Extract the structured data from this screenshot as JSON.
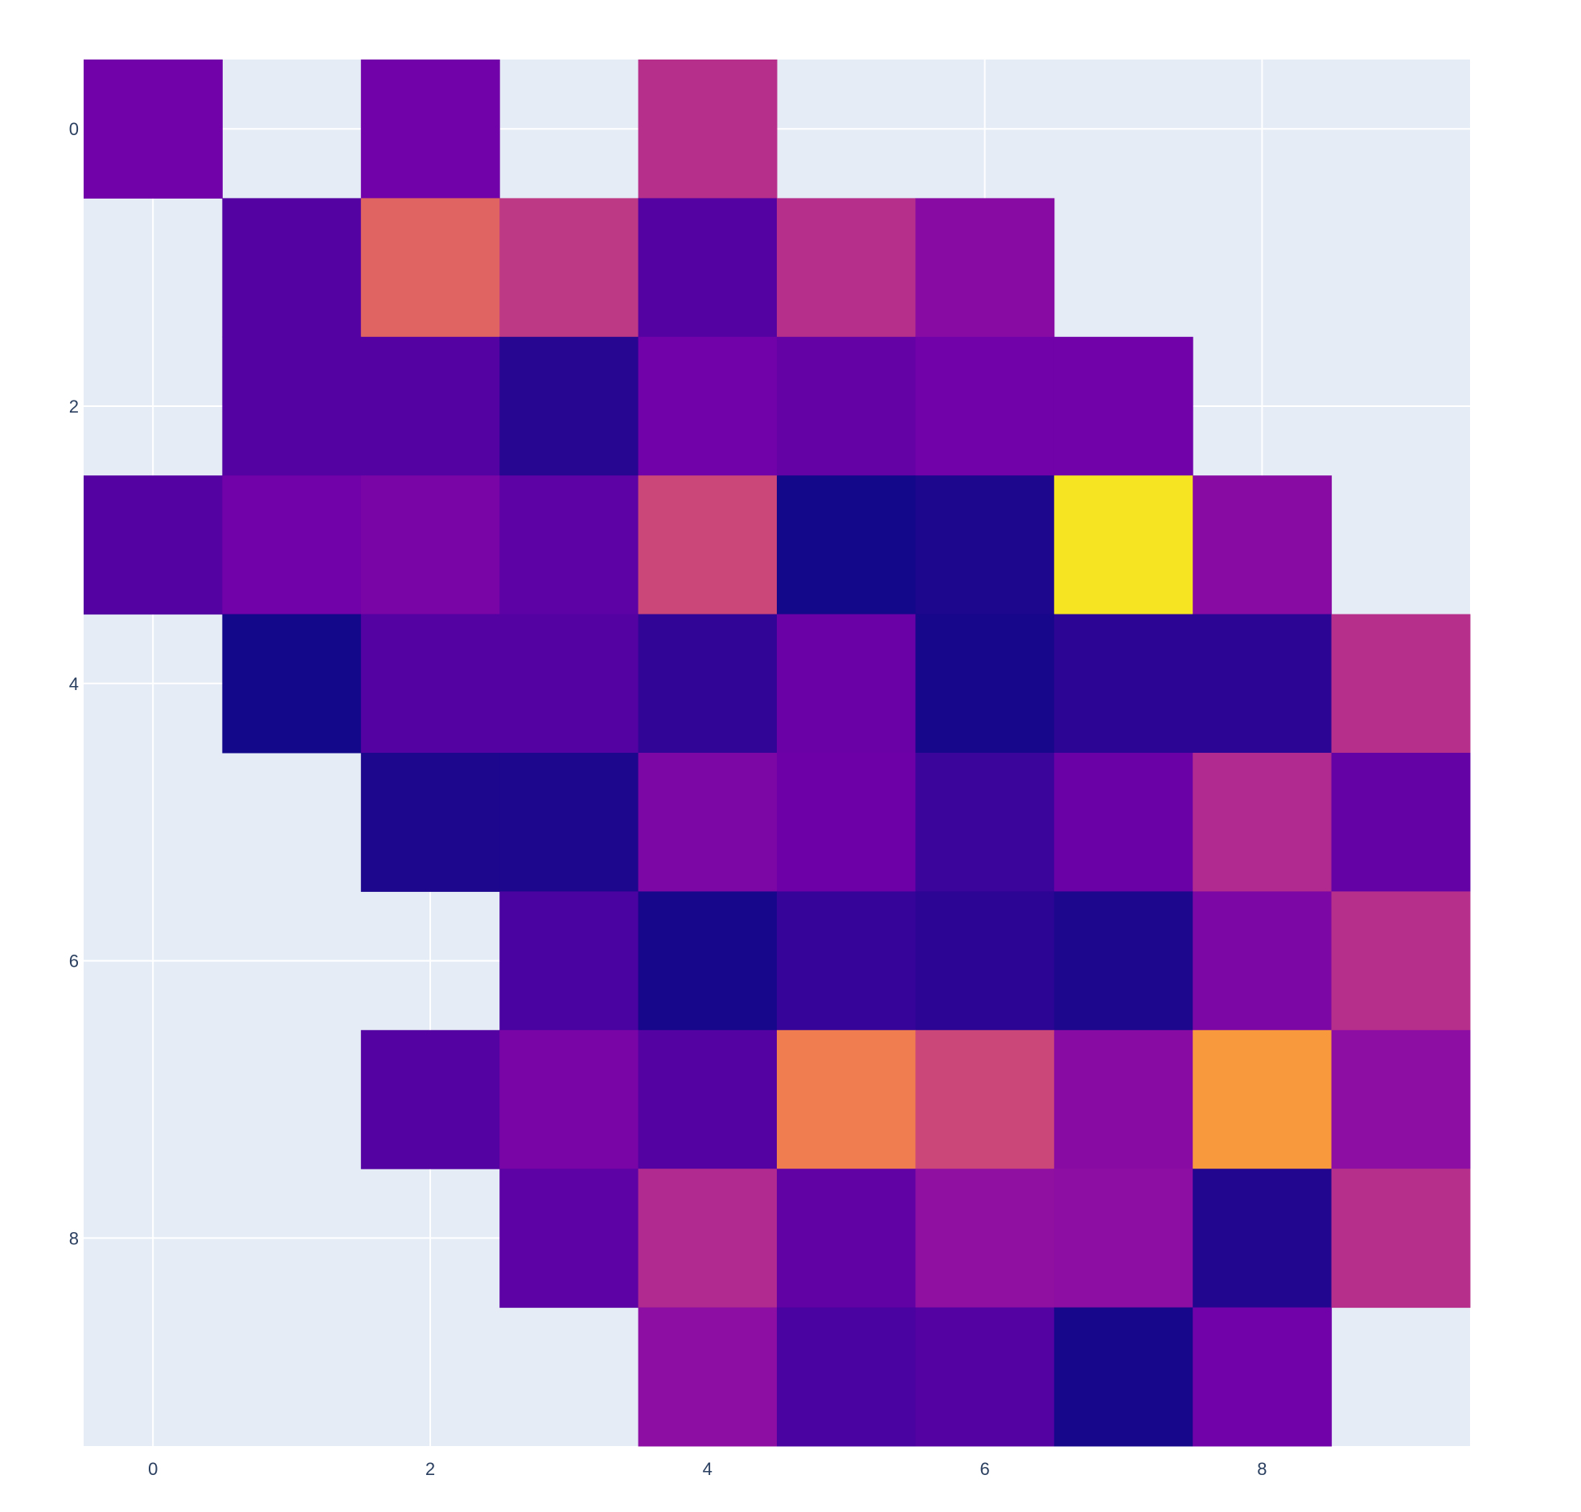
{
  "chart_data": {
    "type": "heatmap",
    "title": "",
    "xlabel": "",
    "ylabel": "",
    "x": [
      0,
      1,
      2,
      3,
      4,
      5,
      6,
      7,
      8,
      9
    ],
    "y": [
      0,
      1,
      2,
      3,
      4,
      5,
      6,
      7,
      8,
      9
    ],
    "xlim": [
      -0.5,
      9.5
    ],
    "ylim": [
      -0.5,
      9.5
    ],
    "y_reversed": true,
    "x_ticks": [
      0,
      2,
      4,
      6,
      8
    ],
    "y_ticks": [
      0,
      2,
      4,
      6,
      8
    ],
    "grid": true,
    "colorscale": "plasma",
    "z_range": [
      0,
      1
    ],
    "z": [
      [
        0.22,
        null,
        0.22,
        null,
        0.42,
        null,
        null,
        null,
        null,
        null
      ],
      [
        null,
        0.15,
        0.6,
        0.45,
        0.15,
        0.42,
        0.28,
        null,
        null,
        null
      ],
      [
        null,
        0.15,
        0.15,
        0.05,
        0.22,
        0.19,
        0.22,
        0.22,
        null,
        null
      ],
      [
        0.15,
        0.22,
        0.24,
        0.17,
        0.5,
        0.01,
        0.03,
        0.95,
        0.28,
        null
      ],
      [
        null,
        0.01,
        0.15,
        0.15,
        0.07,
        0.2,
        0.02,
        0.06,
        0.06,
        0.42
      ],
      [
        null,
        null,
        0.03,
        0.03,
        0.25,
        0.21,
        0.09,
        0.2,
        0.4,
        0.19
      ],
      [
        null,
        null,
        null,
        0.12,
        0.02,
        0.08,
        0.06,
        0.03,
        0.25,
        0.42
      ],
      [
        null,
        null,
        0.15,
        0.24,
        0.15,
        0.68,
        0.5,
        0.28,
        0.76,
        0.29
      ],
      [
        null,
        null,
        null,
        0.17,
        0.4,
        0.18,
        0.3,
        0.29,
        0.04,
        0.42
      ],
      [
        null,
        null,
        null,
        null,
        0.29,
        0.12,
        0.15,
        0.02,
        0.22,
        null
      ]
    ]
  },
  "colors": {
    "plot_background": "#E5ECF6",
    "grid": "#FFFFFF",
    "tick_text": "#2a3f5f"
  }
}
